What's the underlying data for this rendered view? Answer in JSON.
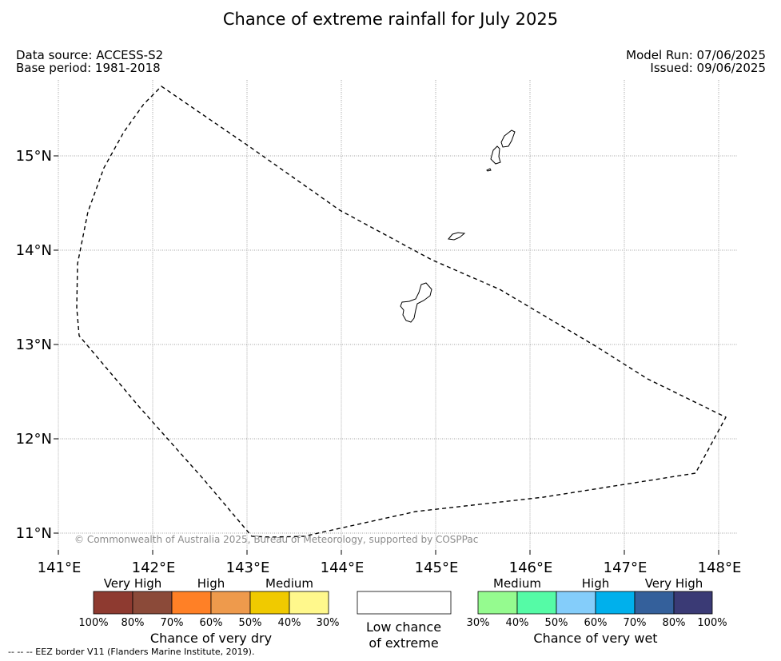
{
  "title": "Chance of extreme rainfall for July 2025",
  "data_source": "Data source: ACCESS-S2",
  "base_period": "Base period: 1981-2018",
  "model_run": "Model Run: 07/06/2025",
  "issued": "Issued: 09/06/2025",
  "copyright": "© Commonwealth of Australia 2025, Bureau of Meteorology, supported by COSPPac",
  "footnote": "--  --  -- EEZ border V11 (Flanders Marine Institute, 2019).",
  "map": {
    "lon_ticks": [
      "141°E",
      "142°E",
      "143°E",
      "144°E",
      "145°E",
      "146°E",
      "147°E",
      "148°E"
    ],
    "lat_ticks": [
      "15°N",
      "14°N",
      "13°N",
      "12°N",
      "11°N"
    ],
    "lon_range": [
      141,
      148.2
    ],
    "lat_range": [
      10.85,
      15.75
    ],
    "grid": "dotted"
  },
  "legend": {
    "dry": {
      "groups": [
        "Very High",
        "High",
        "Medium"
      ],
      "colors": [
        "#8e3a30",
        "#8b4a39",
        "#ff8026",
        "#ee9a4c",
        "#f0ca00",
        "#fff88c"
      ],
      "ticks": [
        "100%",
        "80%",
        "70%",
        "60%",
        "50%",
        "40%",
        "30%"
      ],
      "caption": "Chance of very dry"
    },
    "low": {
      "caption_line1": "Low chance",
      "caption_line2": "of extreme",
      "color": "#ffffff"
    },
    "wet": {
      "groups": [
        "Medium",
        "High",
        "Very High"
      ],
      "colors": [
        "#95fb8f",
        "#55fba6",
        "#84cdfa",
        "#00b0ec",
        "#34609b",
        "#3a3a75"
      ],
      "ticks": [
        "30%",
        "40%",
        "50%",
        "60%",
        "70%",
        "80%",
        "100%"
      ],
      "caption": "Chance of very wet"
    }
  }
}
